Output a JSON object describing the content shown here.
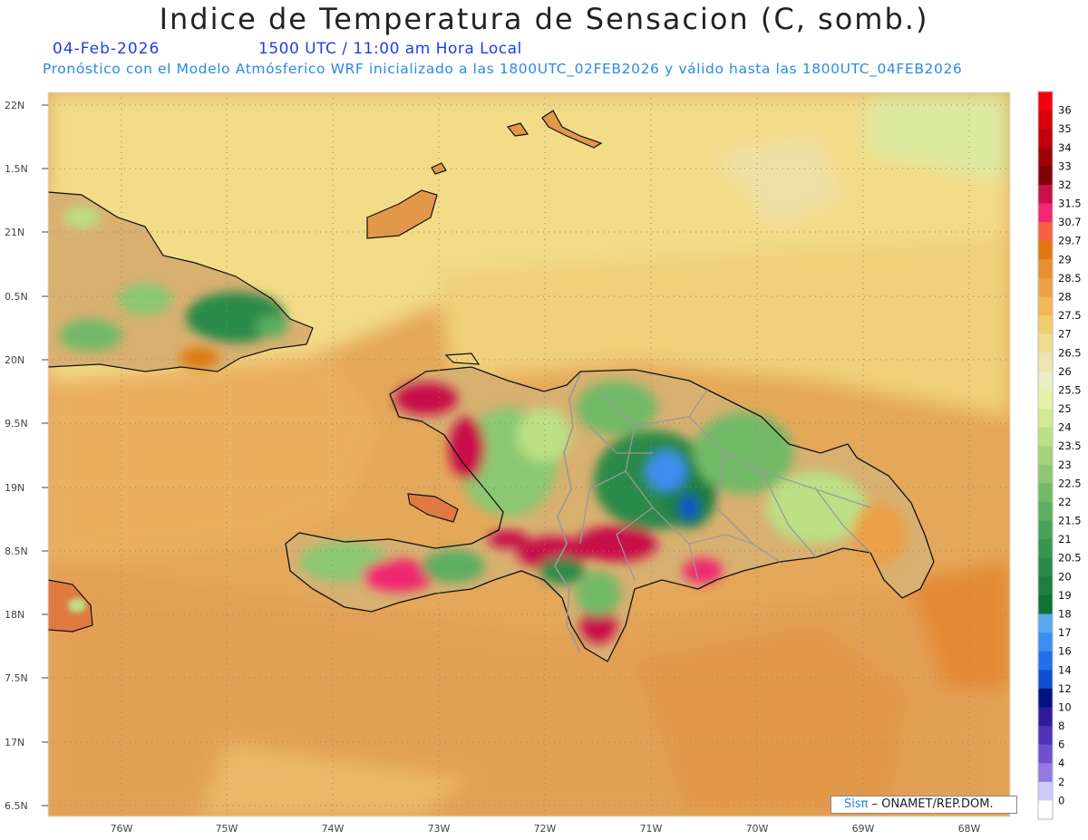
{
  "header": {
    "title": "Indice de Temperatura de Sensacion (C, somb.)",
    "date": "04-Feb-2026",
    "time": "1500 UTC / 11:00 am Hora Local",
    "subtitle": "Pronóstico con el Modelo Atmósferico WRF inicializado a las 1800UTC_02FEB2026 y válido hasta las  1800UTC_04FEB2026"
  },
  "axes": {
    "lat_labels": [
      "22N",
      "1.5N",
      "21N",
      "0.5N",
      "20N",
      "9.5N",
      "19N",
      "8.5N",
      "18N",
      "7.5N",
      "17N",
      "6.5N"
    ],
    "lon_labels": [
      "76W",
      "75W",
      "74W",
      "73W",
      "72W",
      "71W",
      "70W",
      "69W",
      "68W"
    ]
  },
  "colorbar": {
    "labels": [
      "36",
      "35",
      "34",
      "33",
      "32",
      "31.5",
      "30.7",
      "29.7",
      "29",
      "28.5",
      "28",
      "27.5",
      "27",
      "26.5",
      "26",
      "25.5",
      "25",
      "24",
      "23.5",
      "23",
      "22.5",
      "22",
      "21.5",
      "21",
      "20.5",
      "20",
      "19",
      "18",
      "17",
      "16",
      "14",
      "12",
      "10",
      "8",
      "6",
      "4",
      "2",
      "0"
    ],
    "colors": [
      "#f4000c",
      "#dc000a",
      "#c00008",
      "#a00006",
      "#800004",
      "#c8104a",
      "#f02870",
      "#f86040",
      "#e07a10",
      "#e89030",
      "#eca048",
      "#f0b858",
      "#f2cc6c",
      "#f2dc90",
      "#eee4b0",
      "#ecedc4",
      "#e6f2a6",
      "#d2ea92",
      "#bce084",
      "#a4d47a",
      "#8cc872",
      "#72ba68",
      "#5cae60",
      "#48a258",
      "#389650",
      "#2a8a48",
      "#1e7e40",
      "#0c7236",
      "#58a8f0",
      "#3c8ef0",
      "#2270e6",
      "#0c50d0",
      "#00127e",
      "#2c1c9c",
      "#5030b4",
      "#7050cc",
      "#9678e4",
      "#cccafa",
      "#ffffff"
    ]
  },
  "credit": {
    "logo": "Sisπ",
    "text": "– ONAMET/REP.DOM."
  }
}
